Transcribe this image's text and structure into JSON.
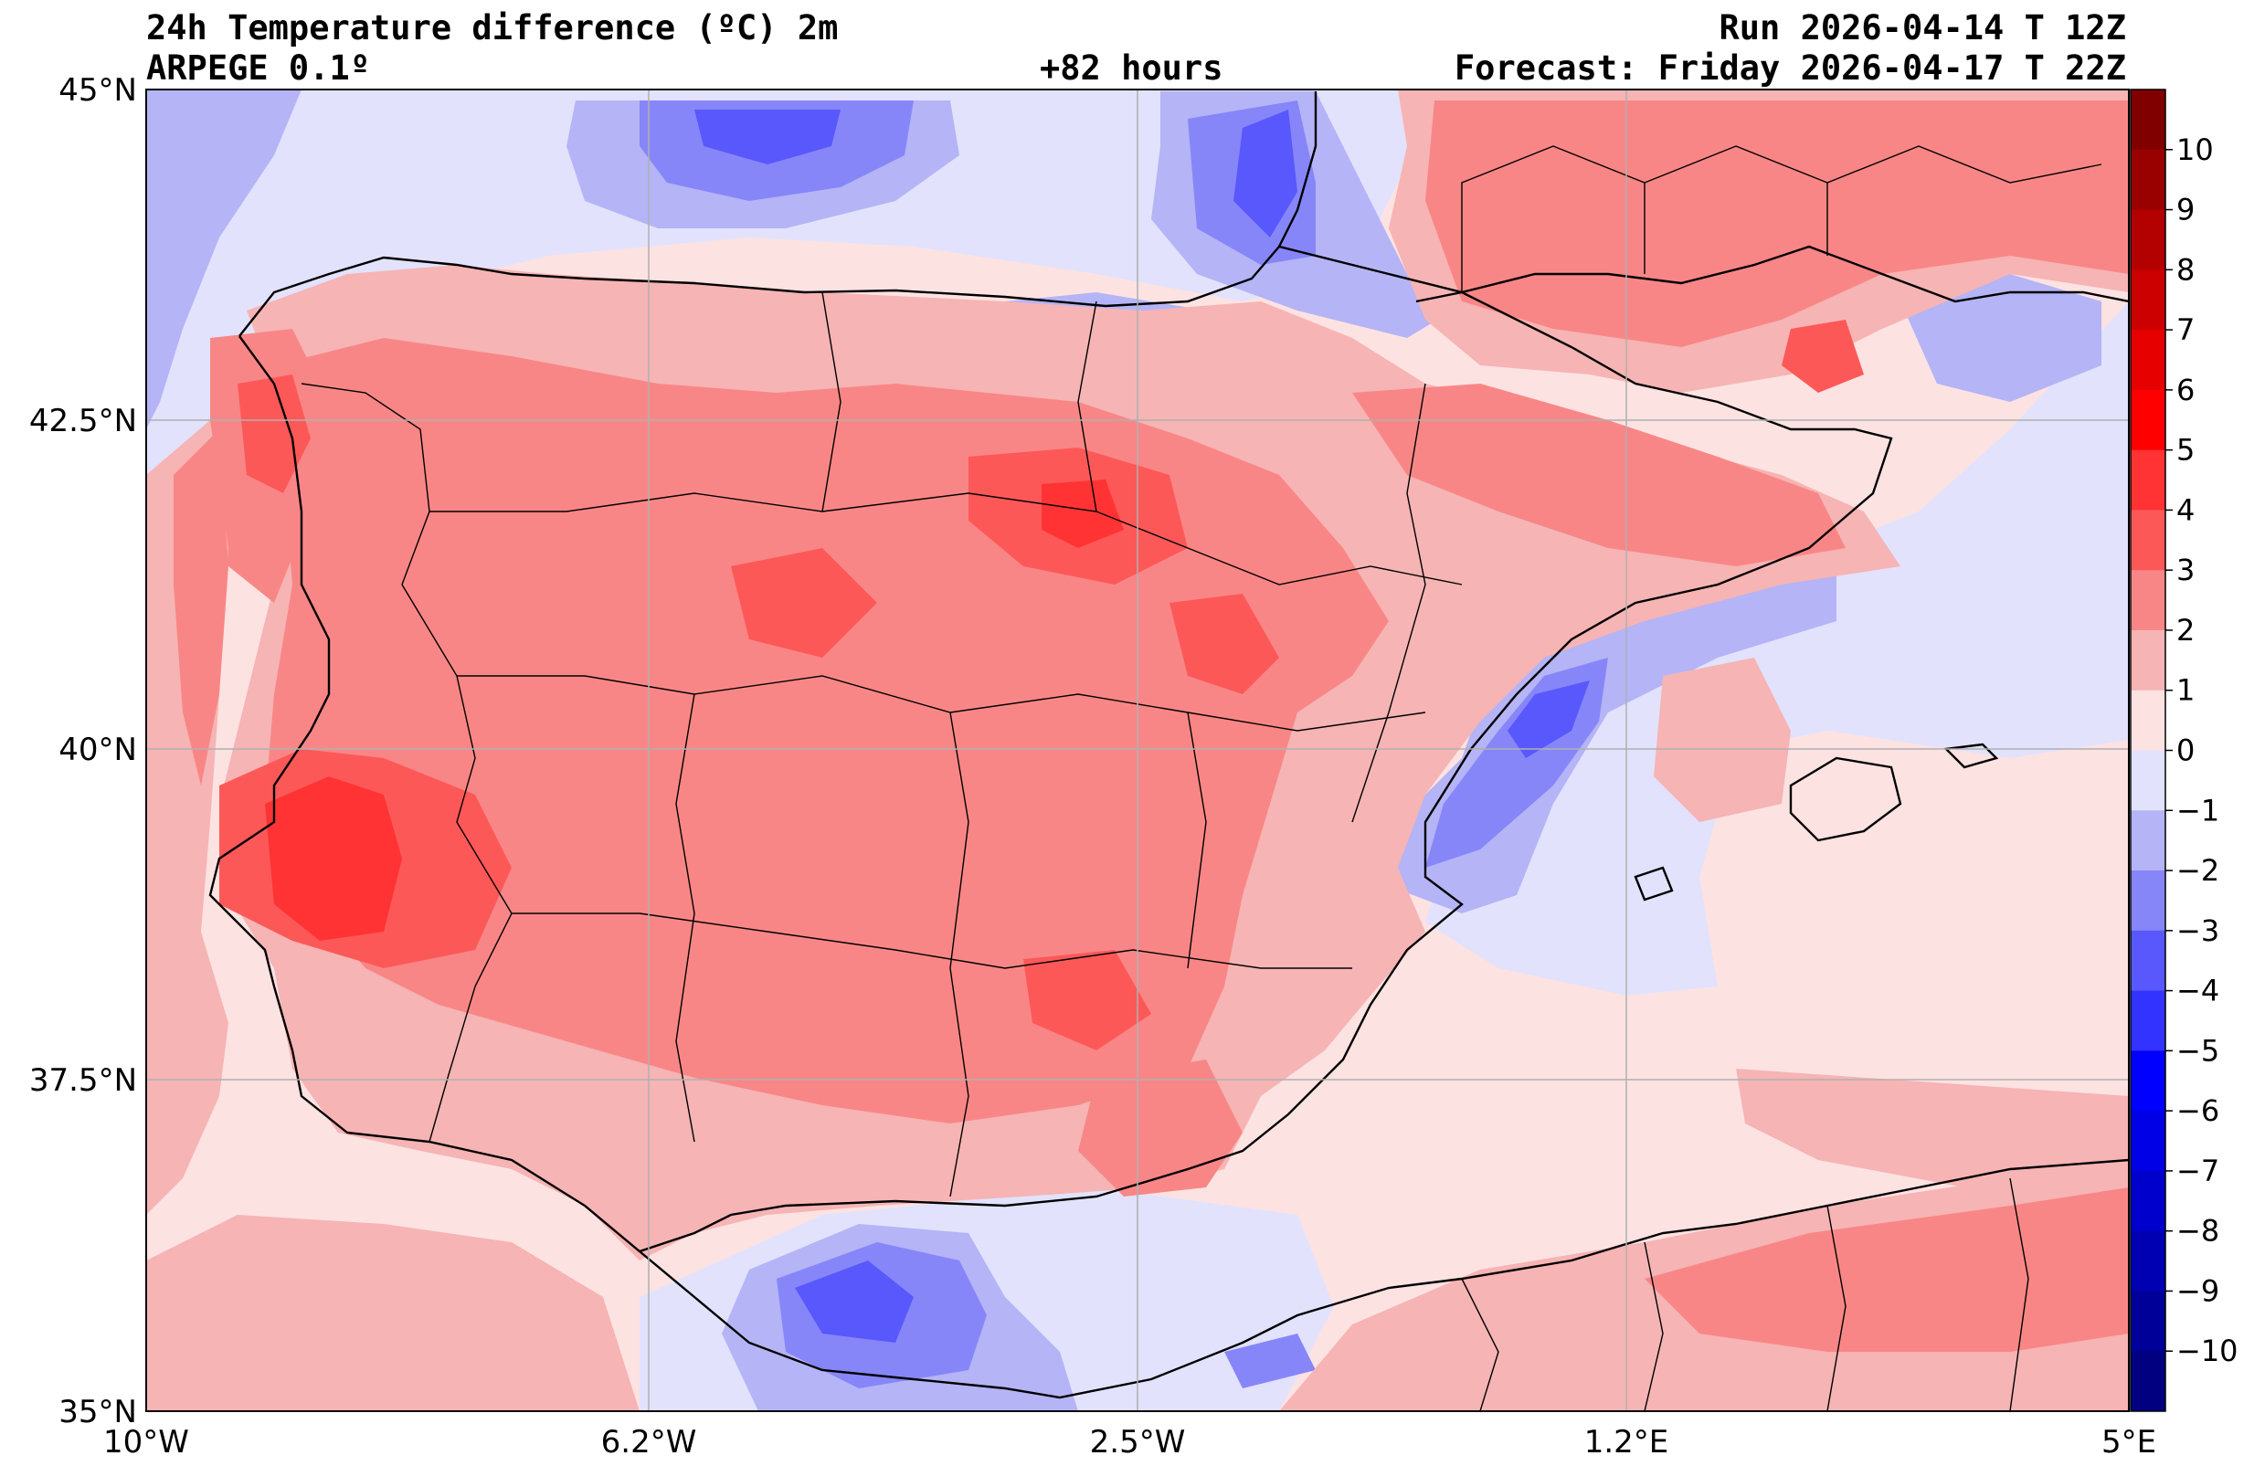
{
  "header": {
    "title": "24h Temperature difference (ºC) 2m",
    "model": "ARPEGE 0.1º",
    "lead_time": "+82 hours",
    "run": "Run 2026-04-14 T 12Z",
    "forecast": "Forecast: Friday 2026-04-17 T 22Z"
  },
  "map": {
    "lat_labels": [
      "45°N",
      "42.5°N",
      "40°N",
      "37.5°N",
      "35°N"
    ],
    "lon_labels": [
      "10°W",
      "6.2°W",
      "2.5°W",
      "1.2°E",
      "5°E"
    ],
    "background_color": "#fde2e2"
  },
  "colorbar": {
    "labels": [
      "10",
      "9",
      "8",
      "7",
      "6",
      "5",
      "4",
      "3",
      "2",
      "1",
      "0",
      "−1",
      "−2",
      "−3",
      "−4",
      "−5",
      "−6",
      "−7",
      "−8",
      "−9",
      "−10"
    ],
    "colors": [
      "#800000",
      "#990000",
      "#b30000",
      "#cc0000",
      "#e60000",
      "#ff0000",
      "#ff3333",
      "#fd5858",
      "#f98686",
      "#f6b4b4",
      "#fde2e2",
      "#e2e2fd",
      "#b4b4f6",
      "#8686f9",
      "#5858fd",
      "#3333ff",
      "#0000ff",
      "#0000e6",
      "#0000cc",
      "#0000b3",
      "#000099",
      "#000080"
    ]
  }
}
